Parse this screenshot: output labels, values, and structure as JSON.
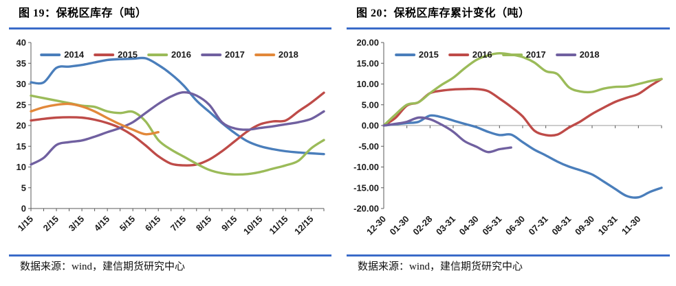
{
  "accent_rule_color": "#3A6BC8",
  "panels": [
    {
      "title": "图 19：保税区库存（吨）",
      "source": "数据来源：wind，建信期货研究中心"
    },
    {
      "title": "图 20：保税区库存累计变化（吨）",
      "source": "数据来源：wind，建信期货研究中心"
    }
  ],
  "chart_data": [
    {
      "type": "line",
      "title": "图 19：保税区库存（吨）",
      "xlabel": "",
      "ylabel": "",
      "ylim": [
        0,
        40
      ],
      "grid": false,
      "legend_position": "top-center",
      "y_tick_labels": [
        "40",
        "35",
        "30",
        "25",
        "20",
        "15",
        "10",
        "5",
        "0"
      ],
      "x_labels": [
        "1/15",
        "2/15",
        "3/15",
        "4/15",
        "5/15",
        "6/15",
        "7/15",
        "8/15",
        "9/15",
        "10/15",
        "11/15",
        "12/15"
      ],
      "x_unit": "semi-monthly",
      "series": [
        {
          "name": "2014",
          "color": "#4A7EBB",
          "values": [
            30.4,
            30.4,
            33.9,
            34.2,
            34.6,
            35.2,
            35.8,
            36.0,
            36.1,
            36.2,
            34.6,
            32.4,
            29.6,
            26.0,
            23.3,
            20.6,
            18.2,
            16.2,
            15.0,
            14.3,
            13.8,
            13.5,
            13.3,
            13.1
          ]
        },
        {
          "name": "2015",
          "color": "#BE4B48",
          "values": [
            21.2,
            21.6,
            21.9,
            22.0,
            21.9,
            21.4,
            20.6,
            19.4,
            17.6,
            15.2,
            12.6,
            10.8,
            10.4,
            10.6,
            11.8,
            13.8,
            16.2,
            18.6,
            20.3,
            21.0,
            21.2,
            23.4,
            25.5,
            27.9
          ]
        },
        {
          "name": "2016",
          "color": "#9BBB59",
          "values": [
            27.2,
            26.6,
            26.0,
            25.4,
            24.8,
            24.5,
            23.4,
            23.0,
            23.3,
            21.0,
            16.5,
            14.2,
            12.5,
            10.8,
            9.3,
            8.5,
            8.2,
            8.3,
            8.8,
            9.6,
            10.4,
            11.5,
            14.5,
            16.5
          ]
        },
        {
          "name": "2017",
          "color": "#7060A0",
          "values": [
            10.6,
            12.2,
            15.3,
            16.0,
            16.4,
            17.3,
            18.4,
            19.4,
            20.8,
            23.0,
            25.2,
            27.0,
            28.0,
            27.2,
            25.0,
            20.8,
            19.3,
            19.0,
            19.4,
            19.8,
            20.3,
            20.8,
            21.6,
            23.4
          ]
        },
        {
          "name": "2018",
          "color": "#E2883A",
          "values": [
            23.4,
            24.4,
            25.0,
            25.2,
            24.6,
            23.4,
            21.8,
            20.3,
            19.0,
            17.9,
            18.4
          ]
        }
      ]
    },
    {
      "type": "line",
      "title": "图 20：保税区库存累计变化（吨）",
      "xlabel": "",
      "ylabel": "",
      "ylim": [
        -20,
        20
      ],
      "grid": false,
      "legend_position": "top-center",
      "y_tick_labels": [
        "20.00",
        "15.00",
        "10.00",
        "5.00",
        "0.00",
        "-5.00",
        "-10.00",
        "-15.00",
        "-20.00"
      ],
      "x_labels": [
        "12-30",
        "01-30",
        "02-28",
        "03-31",
        "04-30",
        "05-31",
        "06-30",
        "07-31",
        "08-31",
        "09-30",
        "10-31",
        "11-30"
      ],
      "x_unit": "semi-monthly",
      "series": [
        {
          "name": "2015",
          "color": "#4A7EBB",
          "values": [
            0,
            0.3,
            0.6,
            0.9,
            2.4,
            2.0,
            1.2,
            0.4,
            -0.4,
            -1.5,
            -2.3,
            -2.2,
            -4.0,
            -5.8,
            -7.2,
            -8.7,
            -9.9,
            -10.8,
            -11.8,
            -13.5,
            -15.3,
            -17.0,
            -17.3,
            -16.0,
            -15.0
          ]
        },
        {
          "name": "2016",
          "color": "#BE4B48",
          "values": [
            0,
            1.8,
            4.8,
            5.6,
            7.8,
            8.4,
            8.7,
            8.8,
            8.8,
            8.3,
            6.5,
            4.5,
            2.2,
            -1.2,
            -2.3,
            -2.2,
            -0.5,
            1.0,
            2.8,
            4.3,
            5.7,
            6.7,
            7.6,
            9.5,
            11.2
          ]
        },
        {
          "name": "2017",
          "color": "#9BBB59",
          "values": [
            0,
            2.6,
            5.0,
            5.6,
            7.8,
            9.8,
            11.5,
            13.8,
            15.8,
            16.9,
            17.4,
            17.1,
            16.5,
            15.2,
            13.1,
            12.4,
            9.2,
            8.2,
            8.1,
            8.9,
            9.3,
            9.4,
            10.0,
            10.7,
            11.2
          ]
        },
        {
          "name": "2018",
          "color": "#7060A0",
          "values": [
            0,
            0.4,
            0.9,
            1.9,
            1.5,
            0.2,
            -1.5,
            -3.8,
            -5.1,
            -6.4,
            -5.7,
            -5.3
          ]
        }
      ]
    }
  ]
}
